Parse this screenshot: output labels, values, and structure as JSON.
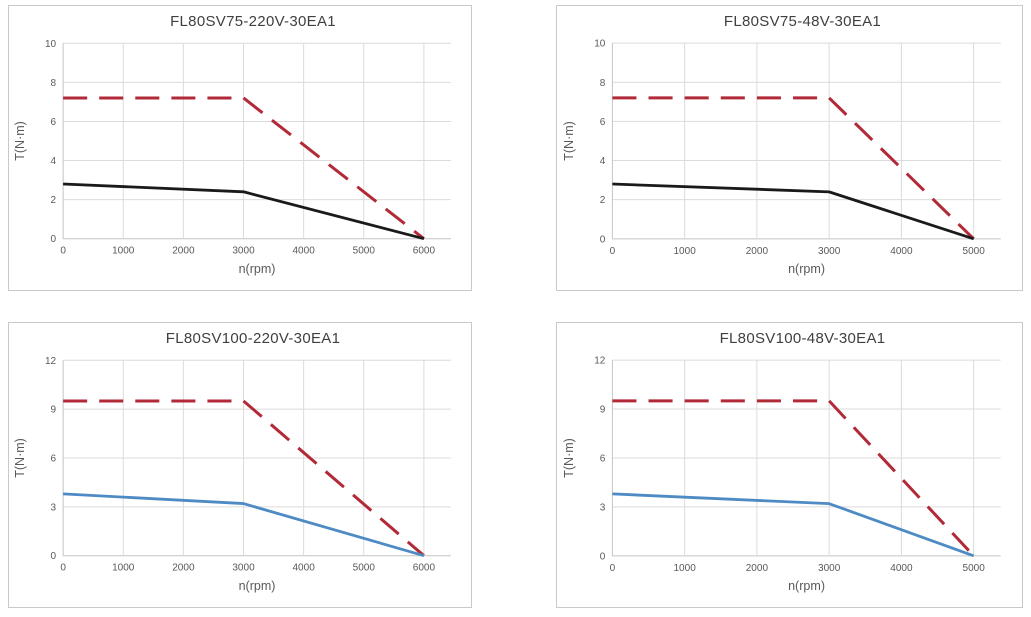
{
  "styles": {
    "grid_color": "#DBDBDB",
    "axis_color": "#C4C4C4",
    "tick_color": "#595959",
    "title_color": "#404040",
    "panel_border": "#C9C9C9",
    "peak_color": "#B22A38",
    "rated_black": "#1A1A1A",
    "rated_blue": "#4E8BC4"
  },
  "chart_data": [
    {
      "type": "line",
      "title": "FL80SV75-220V-30EA1",
      "xlabel": "n(rpm)",
      "ylabel": "T(N·m)",
      "x_ticks": [
        0,
        1000,
        2000,
        3000,
        4000,
        5000,
        6000
      ],
      "x_end": 6450,
      "y_ticks": [
        0,
        2,
        4,
        6,
        8,
        10
      ],
      "ylim": [
        0,
        10
      ],
      "grid": true,
      "legend": "none",
      "series": [
        {
          "name": "peak-torque-curve",
          "color": "#B22A38",
          "dash": true,
          "points": [
            [
              0,
              7.2
            ],
            [
              3000,
              7.2
            ],
            [
              6000,
              0
            ]
          ]
        },
        {
          "name": "rated-torque-curve",
          "color": "#1A1A1A",
          "dash": false,
          "points": [
            [
              0,
              2.8
            ],
            [
              3000,
              2.4
            ],
            [
              6000,
              0
            ]
          ]
        }
      ]
    },
    {
      "type": "line",
      "title": "FL80SV75-48V-30EA1",
      "xlabel": "n(rpm)",
      "ylabel": "T(N·m)",
      "x_ticks": [
        0,
        1000,
        2000,
        3000,
        4000,
        5000
      ],
      "x_end": 5375,
      "y_ticks": [
        0,
        2,
        4,
        6,
        8,
        10
      ],
      "ylim": [
        0,
        10
      ],
      "grid": true,
      "legend": "none",
      "series": [
        {
          "name": "peak-torque-curve",
          "color": "#B22A38",
          "dash": true,
          "points": [
            [
              0,
              7.2
            ],
            [
              3000,
              7.2
            ],
            [
              5000,
              0
            ]
          ]
        },
        {
          "name": "rated-torque-curve",
          "color": "#1A1A1A",
          "dash": false,
          "points": [
            [
              0,
              2.8
            ],
            [
              3000,
              2.4
            ],
            [
              5000,
              0
            ]
          ]
        }
      ]
    },
    {
      "type": "line",
      "title": "FL80SV100-220V-30EA1",
      "xlabel": "n(rpm)",
      "ylabel": "T(N·m)",
      "x_ticks": [
        0,
        1000,
        2000,
        3000,
        4000,
        5000,
        6000
      ],
      "x_end": 6450,
      "y_ticks": [
        0,
        3,
        6,
        9,
        12
      ],
      "ylim": [
        0,
        12
      ],
      "grid": true,
      "legend": "none",
      "series": [
        {
          "name": "peak-torque-curve",
          "color": "#B22A38",
          "dash": true,
          "points": [
            [
              0,
              9.5
            ],
            [
              3000,
              9.5
            ],
            [
              6000,
              0
            ]
          ]
        },
        {
          "name": "rated-torque-curve",
          "color": "#4E8BC4",
          "dash": false,
          "points": [
            [
              0,
              3.8
            ],
            [
              3000,
              3.2
            ],
            [
              6000,
              0
            ]
          ]
        }
      ]
    },
    {
      "type": "line",
      "title": "FL80SV100-48V-30EA1",
      "xlabel": "n(rpm)",
      "ylabel": "T(N·m)",
      "x_ticks": [
        0,
        1000,
        2000,
        3000,
        4000,
        5000
      ],
      "x_end": 5375,
      "y_ticks": [
        0,
        3,
        6,
        9,
        12
      ],
      "ylim": [
        0,
        12
      ],
      "grid": true,
      "legend": "none",
      "series": [
        {
          "name": "peak-torque-curve",
          "color": "#B22A38",
          "dash": true,
          "points": [
            [
              0,
              9.5
            ],
            [
              3000,
              9.5
            ],
            [
              5000,
              0
            ]
          ]
        },
        {
          "name": "rated-torque-curve",
          "color": "#4E8BC4",
          "dash": false,
          "points": [
            [
              0,
              3.8
            ],
            [
              3000,
              3.2
            ],
            [
              5000,
              0
            ]
          ]
        }
      ]
    }
  ]
}
